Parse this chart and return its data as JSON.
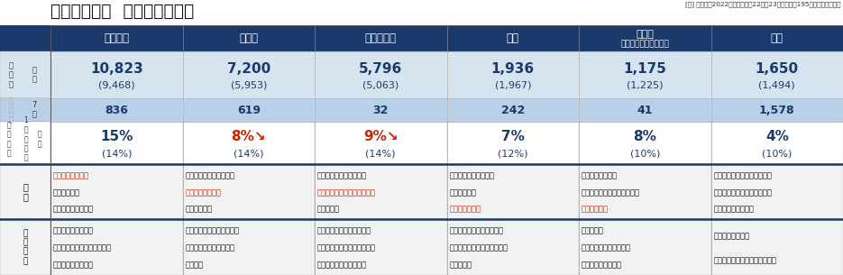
{
  "title": "主な食品分野  価格改定の動向",
  "note": "[注] （）内は2022年の実績値。22年・23年ともに計195社の値上げ品目数",
  "header_color": "#1a3a6b",
  "header_text_color": "#ffffff",
  "dark_navy": "#1a3a6b",
  "light_blue1": "#d6e4f0",
  "light_blue2": "#b8d0e8",
  "white": "#ffffff",
  "bg_gray": "#f2f2f2",
  "columns": [
    "加工食品",
    "調味料",
    "酒類・飲料",
    "菓子",
    "乳製品\n（牛乳・ヨーグルト）",
    "パン"
  ],
  "annual_main": [
    "10,823",
    "7,200",
    "5,796",
    "1,936",
    "1,175",
    "1,650"
  ],
  "annual_sub": [
    "(9,468)",
    "(5,953)",
    "(5,063)",
    "(1,967)",
    "(1,225)",
    "(1,494)"
  ],
  "july": [
    "836",
    "619",
    "32",
    "242",
    "41",
    "1,578"
  ],
  "pct_main": [
    "15%",
    "8%↘",
    "9%↘",
    "7%",
    "8%",
    "4%"
  ],
  "pct_sub": [
    "(14%)",
    "(14%)",
    "(14%)",
    "(12%)",
    "(10%)",
    "(10%)"
  ],
  "pct_red_indices": [
    1,
    2
  ],
  "bg_lines": [
    [
      "包装資材費の上昇",
      "物流費の上昇",
      "電気・ガス代の上昇"
    ],
    [
      "砂糖、食用油の価格高騰",
      "包装資材費の上昇",
      "運送費の上昇"
    ],
    [
      "円安による輸入コスト増",
      "缶・ペットボトルなど包装資",
      "材費の上昇"
    ],
    [
      "カカオ原料の価格高騰",
      "物流費の上昇",
      "包装資材の上昇"
    ],
    [
      "原材料価格の上昇",
      "包装資材・運輸コストの上昇",
      "飼料価格高騰"
    ],
    [
      "小麦・卵・乳製品価格の上昇",
      "包装資材・運輸コストの上昇",
      "電気・ガス代の上昇"
    ]
  ],
  "bg_red_line_idx": [
    0,
    1,
    1,
    2,
    2,
    -1
  ],
  "food_lines": [
    [
      "冷凍食品、水産缶詰",
      "シリアル食品、パックごはん",
      "チルド麺・カップ麺"
    ],
    [
      "醤油、ソース、ケチャップ",
      "みそ・しょうゆ、香辛料",
      "だし製品"
    ],
    [
      "輸入ワイン・ウィスキー類",
      "発泡酒・新ジャンル・日本酒",
      "エナジードリンク・豆乳"
    ],
    [
      "米菓・アイスクリーム製品",
      "スナック・チョコレート菓子",
      "ゼリー製品"
    ],
    [
      "パック牛乳",
      "ヨーグルト・乳酸菌飲料",
      "乳幼児用粉ミルク類"
    ],
    [
      "食パン・菓子パン",
      "調理パン（サンドイッチなど）"
    ]
  ]
}
